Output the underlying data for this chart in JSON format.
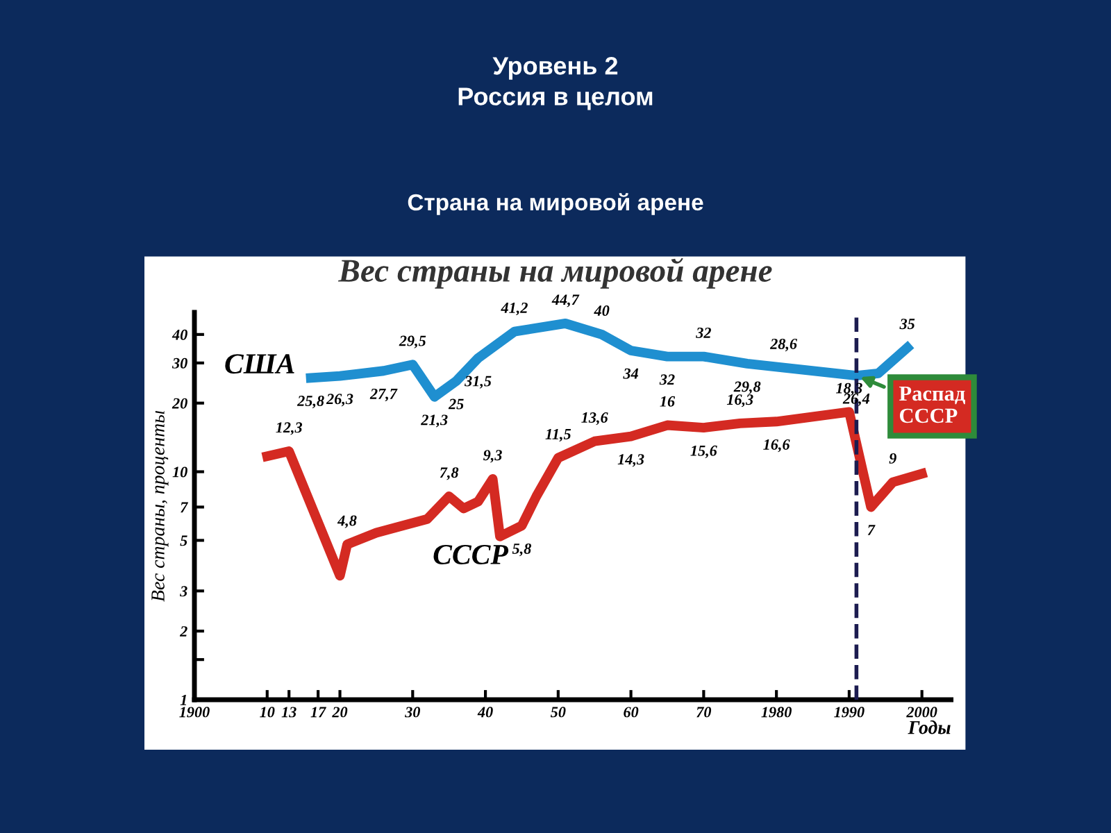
{
  "chart_data": {
    "type": "line",
    "title": "Вес страны на мировой арене",
    "xlabel": "Годы",
    "ylabel": "Вес страны, проценты",
    "annotations": [
      "Уровень 2\nРоссия в целом",
      "Страна на мировой арене",
      {
        "text": "Распад СССР",
        "x": 1991,
        "y": 26.4
      }
    ],
    "log": "y",
    "xlim": [
      1900,
      2004
    ],
    "ylim": [
      1,
      50
    ],
    "xticks": [
      {
        "value": 1900,
        "label": "1900"
      },
      {
        "value": 1910,
        "label": "10"
      },
      {
        "value": 1913,
        "label": "13"
      },
      {
        "value": 1917,
        "label": "17"
      },
      {
        "value": 1920,
        "label": "20"
      },
      {
        "value": 1930,
        "label": "30"
      },
      {
        "value": 1940,
        "label": "40"
      },
      {
        "value": 1950,
        "label": "50"
      },
      {
        "value": 1960,
        "label": "60"
      },
      {
        "value": 1970,
        "label": "70"
      },
      {
        "value": 1980,
        "label": "1980"
      },
      {
        "value": 1990,
        "label": "1990"
      },
      {
        "value": 2000,
        "label": "2000"
      }
    ],
    "yticks": [
      1,
      {
        "value": 1.5,
        "label": null
      },
      2,
      3,
      5,
      7,
      10,
      20,
      30,
      40
    ],
    "grid": false,
    "legend": false,
    "marker": "none",
    "line_style": "solid",
    "ref_lines": [
      {
        "axis": "x",
        "value": 1991,
        "label": null,
        "color": "#1c1c50",
        "line_style": "dashed"
      }
    ],
    "series": [
      {
        "name": "США",
        "color": "#1f8fd0",
        "x": [
          1916,
          1920,
          1926,
          1930,
          1933,
          1936,
          1939,
          1944,
          1951,
          1956,
          1960,
          1965,
          1970,
          1976,
          1981,
          1991,
          1994,
          1998
        ],
        "values": [
          25.8,
          26.3,
          27.7,
          29.5,
          21.3,
          25,
          31.5,
          41.2,
          44.7,
          40,
          34,
          32,
          32,
          29.8,
          28.6,
          26.4,
          27,
          35
        ],
        "value_labels": [
          "25,8",
          "26,3",
          "27,7",
          "29,5",
          "21,3",
          "25",
          "31,5",
          "41,2",
          "44,7",
          "40",
          "34",
          "32",
          "32",
          "29,8",
          "28,6",
          "26,4",
          null,
          "35"
        ]
      },
      {
        "name": "СССР",
        "color": "#d42a22",
        "x": [
          1910,
          1913,
          1920,
          1921,
          1925,
          1932,
          1935,
          1937,
          1939,
          1941,
          1942,
          1945,
          1947,
          1950,
          1955,
          1960,
          1965,
          1970,
          1975,
          1980,
          1990,
          1993,
          1996,
          2000
        ],
        "values": [
          11.7,
          12.3,
          3.5,
          4.8,
          5.4,
          6.2,
          7.8,
          6.9,
          7.4,
          9.3,
          5.2,
          5.8,
          7.8,
          11.5,
          13.6,
          14.3,
          16,
          15.6,
          16.3,
          16.6,
          18.3,
          7,
          9,
          9.8
        ],
        "value_labels": [
          null,
          "12,3",
          null,
          "4,8",
          null,
          null,
          "7,8",
          null,
          null,
          "9,3",
          null,
          "5,8",
          null,
          "11,5",
          "13,6",
          "14,3",
          "16",
          "15,6",
          "16,3",
          "16,6",
          "18,3",
          "7",
          "9",
          null
        ]
      }
    ]
  }
}
